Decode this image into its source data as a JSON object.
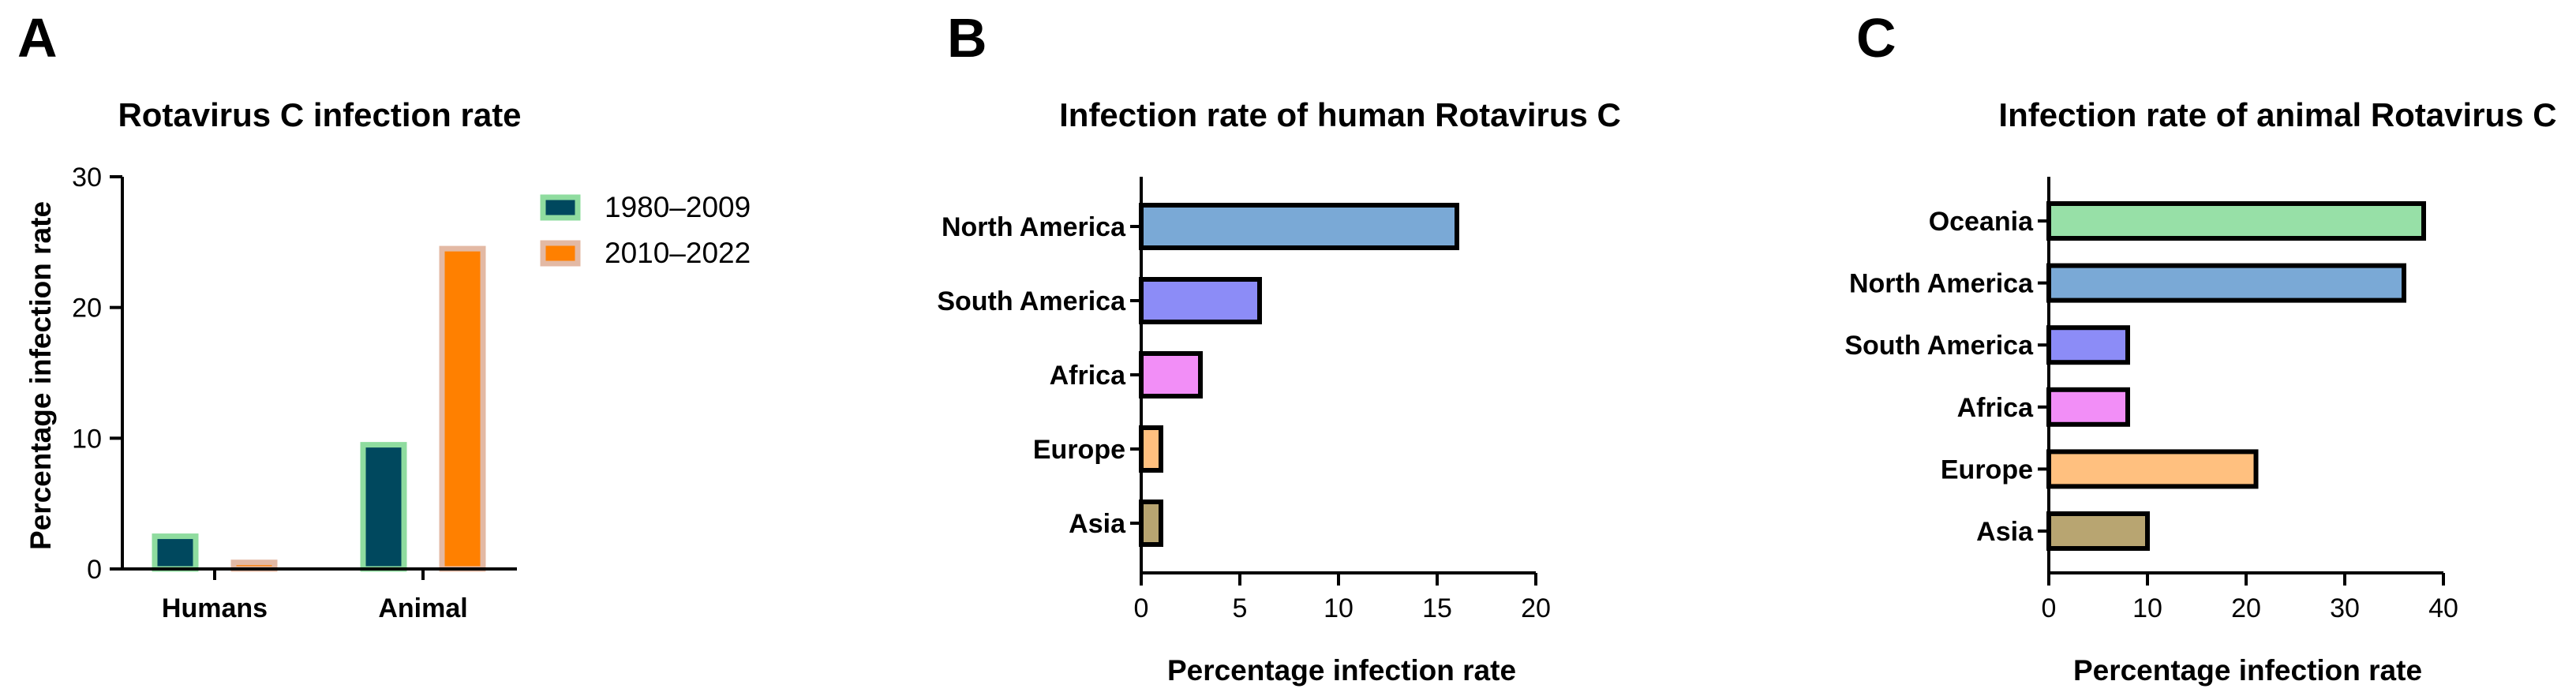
{
  "colors": {
    "series_1980": "#00485e",
    "series_1980_edge": "#8fdc9f",
    "series_2010": "#ff8000",
    "series_2010_edge": "#e3b9a4",
    "north_america": "#7aa9d6",
    "south_america": "#8c8cf7",
    "africa": "#f28ef7",
    "europe": "#ffc07f",
    "asia": "#b8a571",
    "oceania": "#97e0a7",
    "axis": "#000000"
  },
  "chart_data": [
    {
      "panel": "A",
      "type": "bar",
      "title": "Rotavirus C infection rate",
      "xlabel": "",
      "ylabel": "Percentage infection rate",
      "categories": [
        "Humans",
        "Animal"
      ],
      "series": [
        {
          "name": "1980–2009",
          "values": [
            2.5,
            9.5
          ]
        },
        {
          "name": "2010–2022",
          "values": [
            0.5,
            24.5
          ]
        }
      ],
      "ylim": [
        0,
        30
      ],
      "yticks": [
        "0",
        "10",
        "20",
        "30"
      ],
      "legend_position": "top-right"
    },
    {
      "panel": "B",
      "type": "bar",
      "orientation": "horizontal",
      "title": "Infection rate of human Rotavirus C",
      "xlabel": "Percentage infection rate",
      "ylabel": "",
      "categories": [
        "North America",
        "South America",
        "Africa",
        "Europe",
        "Asia"
      ],
      "values": [
        16,
        6,
        3,
        1,
        1
      ],
      "xlim": [
        0,
        20
      ],
      "xticks": [
        "0",
        "5",
        "10",
        "15",
        "20"
      ]
    },
    {
      "panel": "C",
      "type": "bar",
      "orientation": "horizontal",
      "title": "Infection rate of animal Rotavirus C",
      "xlabel": "Percentage infection rate",
      "ylabel": "",
      "categories": [
        "Oceania",
        "North America",
        "South America",
        "Africa",
        "Europe",
        "Asia"
      ],
      "values": [
        38,
        36,
        8,
        8,
        21,
        10
      ],
      "xlim": [
        0,
        40
      ],
      "xticks": [
        "0",
        "10",
        "20",
        "30",
        "40"
      ]
    }
  ]
}
